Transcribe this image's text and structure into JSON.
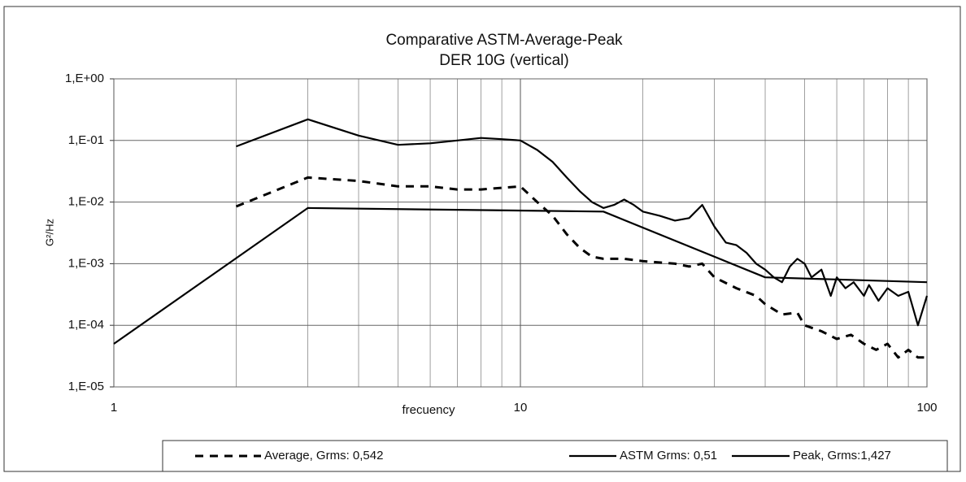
{
  "chart_data": {
    "type": "line",
    "title": "Comparative ASTM-Average-Peak",
    "subtitle": "DER 10G (vertical)",
    "xlabel": "frecuency",
    "ylabel": "G²/Hz",
    "xscale": "log",
    "yscale": "log",
    "grid": true,
    "legend": "bottom",
    "xlim": [
      1,
      100
    ],
    "xticks": [
      1,
      10,
      100
    ],
    "ylim": [
      1e-05,
      1
    ],
    "yticks": [
      {
        "value": 1,
        "label": "1,E+00"
      },
      {
        "value": 0.1,
        "label": "1,E-01"
      },
      {
        "value": 0.01,
        "label": "1,E-02"
      },
      {
        "value": 0.001,
        "label": "1,E-03"
      },
      {
        "value": 0.0001,
        "label": "1,E-04"
      },
      {
        "value": 1e-05,
        "label": "1,E-05"
      }
    ],
    "series": [
      {
        "name": "Average, Grms: 0,542",
        "color": "#000000",
        "dash": true,
        "x": [
          2,
          3,
          4,
          5,
          6,
          7,
          8,
          9,
          10,
          11,
          12,
          13,
          14,
          15,
          16,
          18,
          20,
          24,
          26,
          28,
          30,
          34,
          38,
          40,
          44,
          48,
          50,
          55,
          60,
          65,
          70,
          75,
          80,
          85,
          90,
          95,
          100
        ],
        "values": [
          0.0085,
          0.025,
          0.022,
          0.018,
          0.018,
          0.016,
          0.016,
          0.017,
          0.018,
          0.01,
          0.006,
          0.003,
          0.0018,
          0.0013,
          0.0012,
          0.0012,
          0.0011,
          0.001,
          0.0009,
          0.001,
          0.0006,
          0.0004,
          0.0003,
          0.00022,
          0.00015,
          0.00016,
          0.0001,
          8e-05,
          6e-05,
          7e-05,
          5e-05,
          4e-05,
          5e-05,
          3e-05,
          4e-05,
          3e-05,
          3e-05
        ]
      },
      {
        "name": "ASTM Grms: 0,51",
        "color": "#000000",
        "dash": false,
        "x": [
          1,
          3,
          16,
          40,
          100
        ],
        "values": [
          5e-05,
          0.008,
          0.007,
          0.0006,
          0.0005
        ]
      },
      {
        "name": "Peak, Grms:1,427",
        "color": "#000000",
        "dash": false,
        "x": [
          2,
          3,
          4,
          5,
          6,
          7,
          8,
          9,
          10,
          11,
          12,
          13,
          14,
          15,
          16,
          17,
          18,
          19,
          20,
          22,
          24,
          26,
          28,
          30,
          32,
          34,
          36,
          38,
          40,
          42,
          44,
          46,
          48,
          50,
          52,
          55,
          58,
          60,
          63,
          66,
          70,
          72,
          76,
          80,
          85,
          90,
          95,
          100
        ],
        "values": [
          0.08,
          0.22,
          0.12,
          0.085,
          0.09,
          0.1,
          0.11,
          0.105,
          0.1,
          0.07,
          0.045,
          0.025,
          0.015,
          0.01,
          0.008,
          0.009,
          0.011,
          0.009,
          0.007,
          0.006,
          0.005,
          0.0055,
          0.009,
          0.004,
          0.0022,
          0.002,
          0.0015,
          0.001,
          0.0008,
          0.0006,
          0.0005,
          0.0009,
          0.0012,
          0.001,
          0.0006,
          0.0008,
          0.0003,
          0.0006,
          0.0004,
          0.0005,
          0.0003,
          0.00045,
          0.00025,
          0.0004,
          0.0003,
          0.00035,
          0.0001,
          0.0003
        ]
      }
    ]
  }
}
